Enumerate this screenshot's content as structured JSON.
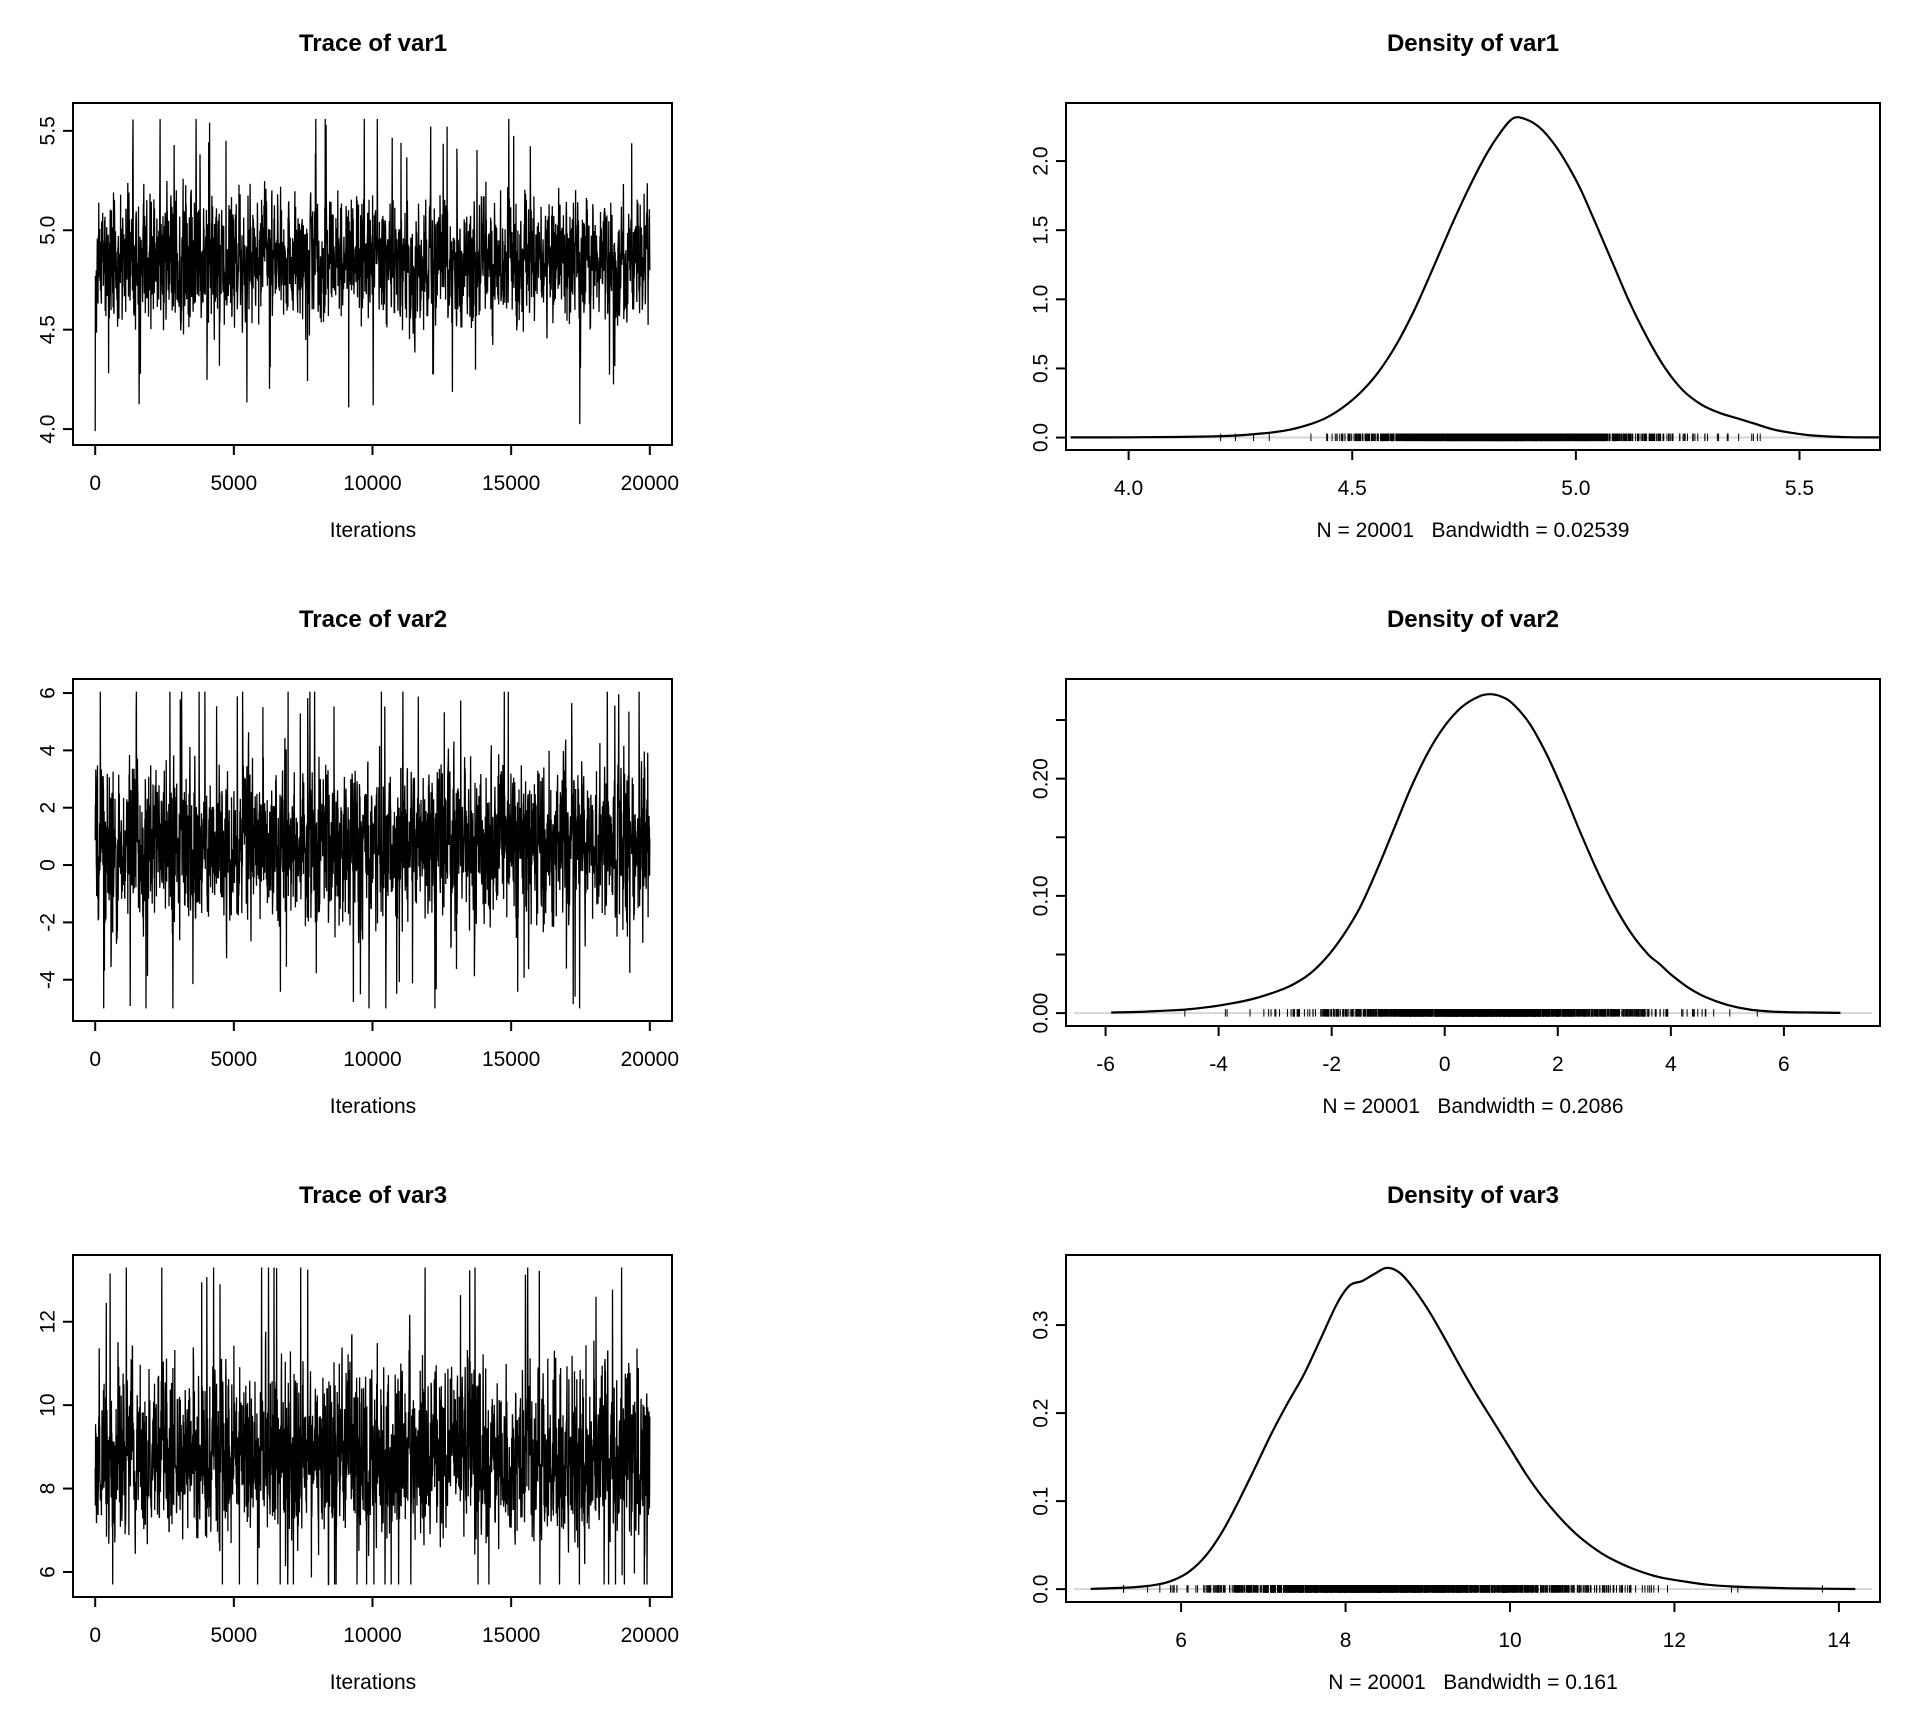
{
  "layout_meta": {
    "background": "#ffffff",
    "line_color": "#000000",
    "rug_baseline_color": "#d6d6d6",
    "description": "R coda-style MCMC diagnostics: trace and density plots for var1, var2, var3"
  },
  "chart_data": [
    {
      "id": "trace-var1",
      "type": "line",
      "panel": "trace",
      "title": "Trace of var1",
      "xlabel": "Iterations",
      "x_ticks": [
        0,
        5000,
        10000,
        15000,
        20000
      ],
      "x_tick_labels": [
        "0",
        "5000",
        "10000",
        "15000",
        "20000"
      ],
      "xlim": [
        -800,
        20800
      ],
      "y_ticks": [
        4.0,
        4.5,
        5.0,
        5.5
      ],
      "y_tick_labels": [
        "4.0",
        "4.5",
        "5.0",
        "5.5"
      ],
      "y_minor_ticks": [],
      "ylim": [
        3.92,
        5.64
      ],
      "series_summary": {
        "n": 20001,
        "mean": 4.85,
        "sd": 0.165,
        "min": 3.99,
        "max": 5.56,
        "sd_upper": 1.0,
        "sd_lower": 1.0,
        "features": [
          {
            "iteration": 0,
            "value": 3.99
          },
          {
            "iteration": 9700,
            "value": 5.56
          }
        ]
      }
    },
    {
      "id": "density-var1",
      "type": "line",
      "panel": "density",
      "title": "Density of var1",
      "sub_label": "N = 20001   Bandwidth = 0.02539",
      "x_ticks": [
        4.0,
        4.5,
        5.0,
        5.5
      ],
      "x_tick_labels": [
        "4.0",
        "4.5",
        "5.0",
        "5.5"
      ],
      "xlim": [
        3.86,
        5.68
      ],
      "y_ticks": [
        0,
        0.5,
        1.0,
        1.5,
        2.0
      ],
      "y_tick_labels": [
        "0.0",
        "0.5",
        "1.0",
        "1.5",
        "2.0"
      ],
      "y_minor_ticks": [],
      "ylim": [
        -0.09,
        2.42
      ],
      "curve": {
        "x": [
          3.87,
          4.0,
          4.1,
          4.18,
          4.24,
          4.3,
          4.35,
          4.4,
          4.44,
          4.48,
          4.52,
          4.56,
          4.6,
          4.64,
          4.68,
          4.72,
          4.76,
          4.8,
          4.83,
          4.86,
          4.89,
          4.92,
          4.95,
          4.98,
          5.01,
          5.04,
          5.08,
          5.12,
          5.16,
          5.2,
          5.24,
          5.28,
          5.32,
          5.36,
          5.4,
          5.44,
          5.48,
          5.52,
          5.57,
          5.62,
          5.68
        ],
        "y": [
          0.001,
          0.002,
          0.004,
          0.008,
          0.015,
          0.03,
          0.05,
          0.09,
          0.14,
          0.22,
          0.33,
          0.48,
          0.68,
          0.93,
          1.22,
          1.52,
          1.8,
          2.05,
          2.2,
          2.31,
          2.3,
          2.24,
          2.13,
          1.98,
          1.8,
          1.58,
          1.28,
          0.98,
          0.72,
          0.5,
          0.34,
          0.24,
          0.18,
          0.14,
          0.1,
          0.06,
          0.035,
          0.018,
          0.007,
          0.002,
          0.001
        ]
      },
      "rug": {
        "mean": 4.85,
        "sd": 0.17,
        "min": 3.92,
        "max": 5.62,
        "sd_upper": 1.0,
        "sd_lower": 1.0,
        "n_display": 1500
      }
    },
    {
      "id": "trace-var2",
      "type": "line",
      "panel": "trace",
      "title": "Trace of var2",
      "xlabel": "Iterations",
      "x_ticks": [
        0,
        5000,
        10000,
        15000,
        20000
      ],
      "x_tick_labels": [
        "0",
        "5000",
        "10000",
        "15000",
        "20000"
      ],
      "xlim": [
        -800,
        20800
      ],
      "y_ticks": [
        -4,
        -2,
        0,
        2,
        4,
        6
      ],
      "y_tick_labels": [
        "-4",
        "-2",
        "0",
        "2",
        "4",
        "6"
      ],
      "y_minor_ticks": [],
      "ylim": [
        -5.44,
        6.49
      ],
      "series_summary": {
        "n": 20001,
        "mean": 0.75,
        "sd": 1.45,
        "min": -5.0,
        "max": 6.05,
        "sd_upper": 1.0,
        "sd_lower": 1.0,
        "features": [
          {
            "iteration": 2800,
            "value": -5.0
          },
          {
            "iteration": 14900,
            "value": 6.05
          }
        ]
      }
    },
    {
      "id": "density-var2",
      "type": "line",
      "panel": "density",
      "title": "Density of var2",
      "sub_label": "N = 20001   Bandwidth = 0.2086",
      "x_ticks": [
        -6,
        -4,
        -2,
        0,
        2,
        4,
        6
      ],
      "x_tick_labels": [
        "-6",
        "-4",
        "-2",
        "0",
        "2",
        "4",
        "6"
      ],
      "xlim": [
        -6.7,
        7.7
      ],
      "y_ticks": [
        0,
        0.1,
        0.2
      ],
      "y_tick_labels": [
        "0.00",
        "0.10",
        "0.20"
      ],
      "y_minor_ticks": [
        0.05,
        0.15,
        0.25
      ],
      "ylim": [
        -0.011,
        0.285
      ],
      "curve": {
        "x": [
          -5.9,
          -5.4,
          -5.0,
          -4.6,
          -4.2,
          -3.8,
          -3.4,
          -3.0,
          -2.7,
          -2.4,
          -2.1,
          -1.8,
          -1.5,
          -1.2,
          -0.9,
          -0.6,
          -0.3,
          0.0,
          0.3,
          0.6,
          0.8,
          1.0,
          1.2,
          1.5,
          1.8,
          2.1,
          2.4,
          2.7,
          3.0,
          3.3,
          3.6,
          3.8,
          4.0,
          4.3,
          4.6,
          5.0,
          5.4,
          5.9,
          6.5,
          7.0
        ],
        "y": [
          0.0005,
          0.001,
          0.002,
          0.003,
          0.005,
          0.008,
          0.012,
          0.018,
          0.024,
          0.033,
          0.047,
          0.066,
          0.09,
          0.122,
          0.157,
          0.192,
          0.222,
          0.245,
          0.261,
          0.27,
          0.272,
          0.27,
          0.264,
          0.247,
          0.221,
          0.189,
          0.154,
          0.121,
          0.092,
          0.068,
          0.05,
          0.042,
          0.033,
          0.022,
          0.014,
          0.007,
          0.003,
          0.001,
          0.0005,
          0.0002
        ]
      },
      "rug": {
        "mean": 0.75,
        "sd": 1.45,
        "min": -5.55,
        "max": 6.6,
        "sd_upper": 1.0,
        "sd_lower": 1.0,
        "n_display": 1500
      }
    },
    {
      "id": "trace-var3",
      "type": "line",
      "panel": "trace",
      "title": "Trace of var3",
      "xlabel": "Iterations",
      "x_ticks": [
        0,
        5000,
        10000,
        15000,
        20000
      ],
      "x_tick_labels": [
        "0",
        "5000",
        "10000",
        "15000",
        "20000"
      ],
      "xlim": [
        -800,
        20800
      ],
      "y_ticks": [
        6,
        8,
        10,
        12
      ],
      "y_tick_labels": [
        "6",
        "8",
        "10",
        "12"
      ],
      "y_minor_ticks": [],
      "ylim": [
        5.4,
        13.6
      ],
      "series_summary": {
        "n": 20001,
        "mean": 8.55,
        "sd": 1.05,
        "min": 5.7,
        "max": 13.3,
        "sd_upper": 1.25,
        "sd_lower": 0.85,
        "features": [
          {
            "iteration": 400,
            "value": 12.45
          },
          {
            "iteration": 4500,
            "value": 12.9
          },
          {
            "iteration": 11900,
            "value": 13.3
          },
          {
            "iteration": 5200,
            "value": 5.7
          }
        ]
      }
    },
    {
      "id": "density-var3",
      "type": "line",
      "panel": "density",
      "title": "Density of var3",
      "sub_label": "N = 20001   Bandwidth = 0.161",
      "x_ticks": [
        6,
        8,
        10,
        12,
        14
      ],
      "x_tick_labels": [
        "6",
        "8",
        "10",
        "12",
        "14"
      ],
      "xlim": [
        4.6,
        14.5
      ],
      "y_ticks": [
        0,
        0.1,
        0.2,
        0.3
      ],
      "y_tick_labels": [
        "0.0",
        "0.1",
        "0.2",
        "0.3"
      ],
      "y_minor_ticks": [],
      "ylim": [
        -0.0146,
        0.3796
      ],
      "curve": {
        "x": [
          4.9,
          5.4,
          5.7,
          5.9,
          6.1,
          6.3,
          6.5,
          6.7,
          6.9,
          7.1,
          7.3,
          7.5,
          7.7,
          7.9,
          8.05,
          8.2,
          8.35,
          8.5,
          8.65,
          8.8,
          9.0,
          9.2,
          9.4,
          9.6,
          9.8,
          10.0,
          10.2,
          10.4,
          10.6,
          10.8,
          11.0,
          11.2,
          11.5,
          11.8,
          12.1,
          12.4,
          12.7,
          13.0,
          13.4,
          13.8,
          14.2
        ],
        "y": [
          0.0003,
          0.002,
          0.005,
          0.01,
          0.02,
          0.038,
          0.065,
          0.1,
          0.138,
          0.177,
          0.212,
          0.245,
          0.285,
          0.325,
          0.345,
          0.35,
          0.358,
          0.365,
          0.36,
          0.345,
          0.318,
          0.286,
          0.252,
          0.22,
          0.19,
          0.16,
          0.13,
          0.104,
          0.082,
          0.063,
          0.048,
          0.036,
          0.023,
          0.014,
          0.009,
          0.005,
          0.003,
          0.002,
          0.001,
          0.0005,
          0.0002
        ]
      },
      "rug": {
        "mean": 8.45,
        "sd": 1.05,
        "min": 5.3,
        "max": 13.8,
        "sd_upper": 1.35,
        "sd_lower": 0.95,
        "n_display": 1500
      }
    }
  ]
}
